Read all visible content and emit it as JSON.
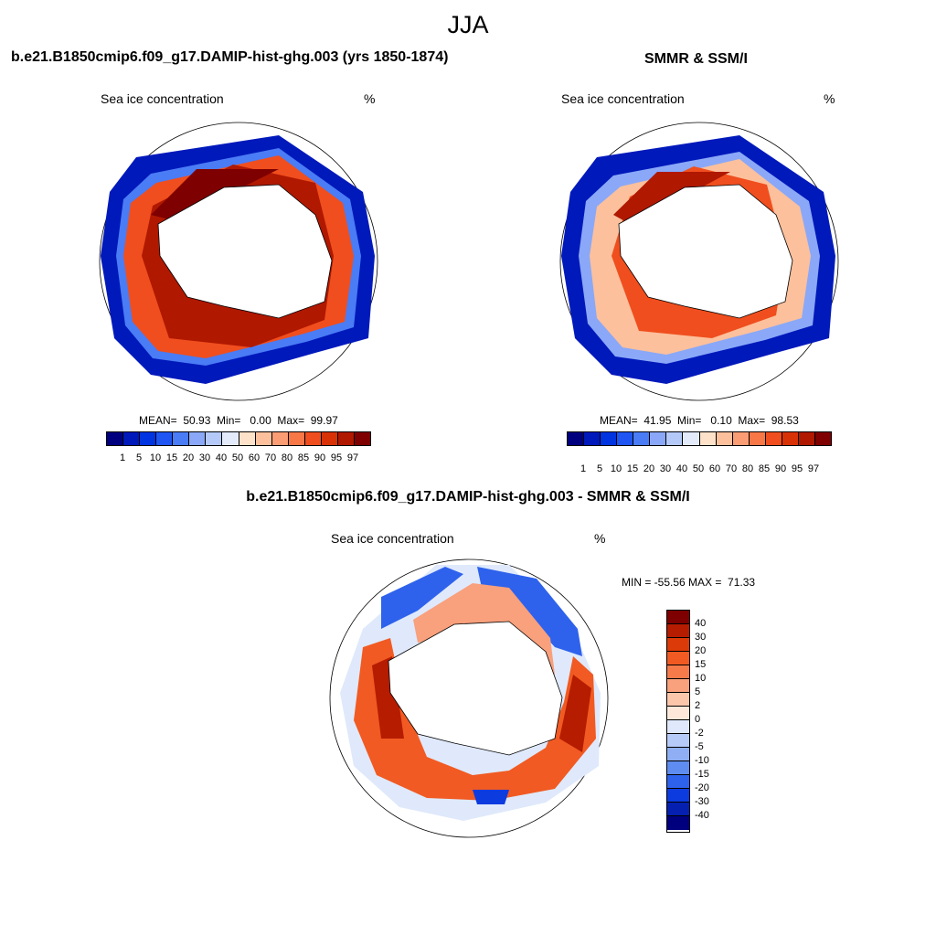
{
  "title": "JJA",
  "panels": [
    {
      "title": "b.e21.B1850cmip6.f09_g17.DAMIP-hist-ghg.003 (yrs 1850-1874)",
      "left_label": "Sea ice concentration",
      "right_label": "%",
      "stats": "MEAN=  50.93  Min=   0.00  Max=  99.97",
      "colorbar_labels": [
        "1",
        "5",
        "10",
        "15",
        "20",
        "30",
        "40",
        "50",
        "60",
        "70",
        "80",
        "85",
        "90",
        "95",
        "97"
      ]
    },
    {
      "title": "SMMR & SSM/I",
      "left_label": "Sea ice concentration",
      "right_label": "%",
      "stats": "MEAN=  41.95  Min=   0.10  Max=  98.53",
      "colorbar_labels": [
        "1",
        "5",
        "10",
        "15",
        "20",
        "30",
        "40",
        "50",
        "60",
        "70",
        "80",
        "85",
        "90",
        "95",
        "97"
      ]
    }
  ],
  "diff_panel": {
    "title": "b.e21.B1850cmip6.f09_g17.DAMIP-hist-ghg.003 - SMMR & SSM/I",
    "left_label": "Sea ice concentration",
    "right_label": "%",
    "stats": "MIN = -55.56 MAX =  71.33",
    "colorbar_labels": [
      "40",
      "30",
      "20",
      "15",
      "10",
      "5",
      "2",
      "0",
      "-2",
      "-5",
      "-10",
      "-15",
      "-20",
      "-30",
      "-40"
    ]
  },
  "colors": {
    "seq": [
      "#00007f",
      "#0019bb",
      "#0034e0",
      "#1f55f2",
      "#4a7cf5",
      "#8aa8f7",
      "#b4c9f8",
      "#e3ebfb",
      "#fde2c9",
      "#fcc09c",
      "#fa9d74",
      "#f77747",
      "#f04e1e",
      "#d93206",
      "#b01800",
      "#7f0000"
    ],
    "div": [
      "#7f0000",
      "#b51c00",
      "#dc3a08",
      "#f15a22",
      "#f77b4a",
      "#f9a07c",
      "#fcc6ab",
      "#fde8da",
      "#dfe9fb",
      "#b6cbf7",
      "#8faef4",
      "#5f8cf0",
      "#2e62ec",
      "#0c3be0",
      "#0520b0",
      "#00007f"
    ]
  }
}
